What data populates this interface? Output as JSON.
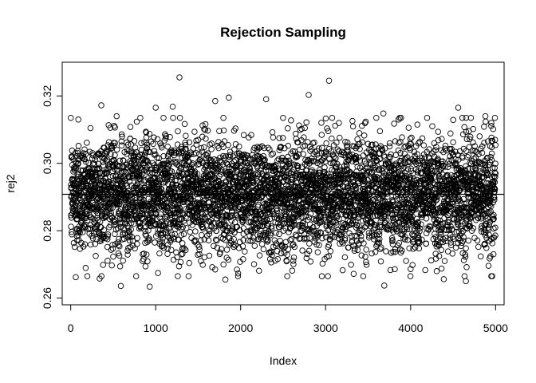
{
  "chart_data": {
    "type": "scatter",
    "title": "Rejection Sampling",
    "xlabel": "Index",
    "ylabel": "rej2",
    "xlim": [
      -100,
      5100
    ],
    "ylim": [
      0.258,
      0.33
    ],
    "xticks": [
      0,
      1000,
      2000,
      3000,
      4000,
      5000
    ],
    "xtick_labels": [
      "0",
      "1000",
      "2000",
      "3000",
      "4000",
      "5000"
    ],
    "yticks": [
      0.26,
      0.28,
      0.3,
      0.32
    ],
    "ytick_labels": [
      "0.26",
      "0.28",
      "0.30",
      "0.32"
    ],
    "hline": 0.2908,
    "grid": false,
    "legend": "none",
    "n_points": 5000,
    "center": 0.2908,
    "spread_sd": 0.0085,
    "points": [
      {
        "x": 1280,
        "y": 0.3255
      },
      {
        "x": 3040,
        "y": 0.3245
      },
      {
        "x": 2800,
        "y": 0.3203
      },
      {
        "x": 1860,
        "y": 0.3195
      },
      {
        "x": 2300,
        "y": 0.319
      },
      {
        "x": 1700,
        "y": 0.3185
      },
      {
        "x": 360,
        "y": 0.3172
      },
      {
        "x": 1000,
        "y": 0.3165
      },
      {
        "x": 1200,
        "y": 0.3168
      },
      {
        "x": 4560,
        "y": 0.3165
      },
      {
        "x": 3680,
        "y": 0.3148
      },
      {
        "x": 90,
        "y": 0.313
      },
      {
        "x": 540,
        "y": 0.314
      },
      {
        "x": 4950,
        "y": 0.312
      },
      {
        "x": 4880,
        "y": 0.314
      },
      {
        "x": 60,
        "y": 0.2662
      },
      {
        "x": 340,
        "y": 0.2658
      },
      {
        "x": 590,
        "y": 0.2636
      },
      {
        "x": 930,
        "y": 0.2634
      },
      {
        "x": 1820,
        "y": 0.2655
      },
      {
        "x": 3690,
        "y": 0.2637
      },
      {
        "x": 4390,
        "y": 0.2656
      },
      {
        "x": 4650,
        "y": 0.265
      },
      {
        "x": 3330,
        "y": 0.2672
      },
      {
        "x": 4000,
        "y": 0.2686
      }
    ]
  }
}
